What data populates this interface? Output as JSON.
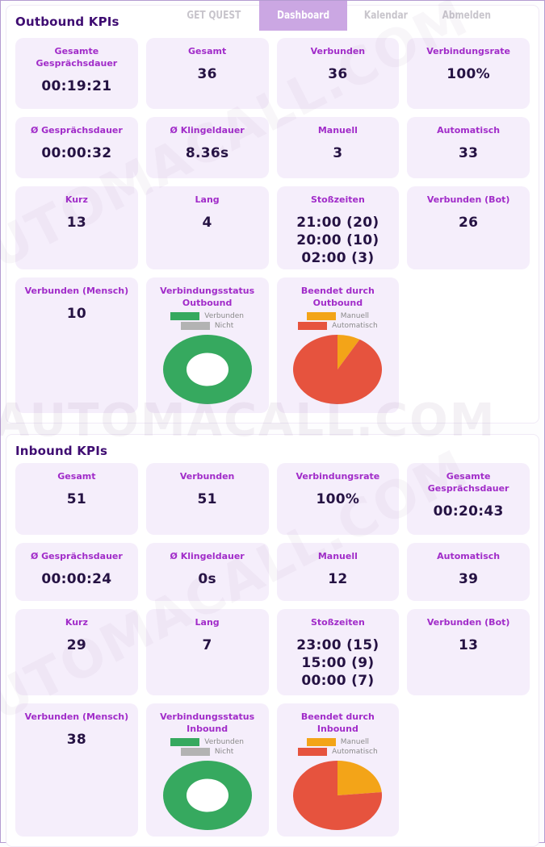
{
  "header": {
    "nav": [
      {
        "label": "GET QUEST",
        "active": false
      },
      {
        "label": "Dashboard",
        "active": true
      },
      {
        "label": "Kalendar",
        "active": false
      },
      {
        "label": "Abmelden",
        "active": false
      }
    ]
  },
  "watermark": "AUTOMACALL.COM",
  "colors": {
    "accent_purple": "#a12cc9",
    "dark_value": "#251243",
    "active_tab_bg": "#cba7e3",
    "card_bg": "#f5eefb",
    "green": "#36a95f",
    "red": "#e6533e",
    "orange": "#f3a418",
    "gray": "#b3b3b3"
  },
  "outbound": {
    "title": "Outbound KPIs",
    "cards": [
      {
        "label": "Gesamte Gesprächsdauer",
        "value": "00:19:21"
      },
      {
        "label": "Gesamt",
        "value": "36"
      },
      {
        "label": "Verbunden",
        "value": "36"
      },
      {
        "label": "Verbindungsrate",
        "value": "100%"
      },
      {
        "label": "Ø Gesprächsdauer",
        "value": "00:00:32"
      },
      {
        "label": "Ø Klingeldauer",
        "value": "8.36s"
      },
      {
        "label": "Manuell",
        "value": "3"
      },
      {
        "label": "Automatisch",
        "value": "33"
      },
      {
        "label": "Kurz",
        "value": "13"
      },
      {
        "label": "Lang",
        "value": "4"
      },
      {
        "label": "Stoßzeiten",
        "value": [
          "21:00 (20)",
          "20:00 (10)",
          "02:00 (3)"
        ]
      },
      {
        "label": "Verbunden (Bot)",
        "value": "26"
      },
      {
        "label": "Verbunden (Mensch)",
        "value": "10"
      },
      {
        "chart_id": "outbound-status"
      },
      {
        "chart_id": "outbound-ended"
      }
    ]
  },
  "inbound": {
    "title": "Inbound KPIs",
    "cards": [
      {
        "label": "Gesamt",
        "value": "51"
      },
      {
        "label": "Verbunden",
        "value": "51"
      },
      {
        "label": "Verbindungsrate",
        "value": "100%"
      },
      {
        "label": "Gesamte Gesprächsdauer",
        "value": "00:20:43"
      },
      {
        "label": "Ø Gesprächsdauer",
        "value": "00:00:24"
      },
      {
        "label": "Ø Klingeldauer",
        "value": "0s"
      },
      {
        "label": "Manuell",
        "value": "12"
      },
      {
        "label": "Automatisch",
        "value": "39"
      },
      {
        "label": "Kurz",
        "value": "29"
      },
      {
        "label": "Lang",
        "value": "7"
      },
      {
        "label": "Stoßzeiten",
        "value": [
          "23:00 (15)",
          "15:00 (9)",
          "00:00 (7)"
        ]
      },
      {
        "label": "Verbunden (Bot)",
        "value": "13"
      },
      {
        "label": "Verbunden (Mensch)",
        "value": "38"
      },
      {
        "chart_id": "inbound-status"
      },
      {
        "chart_id": "inbound-ended"
      }
    ]
  },
  "chart_data": [
    {
      "id": "outbound-status",
      "type": "pie",
      "donut": true,
      "title": "Verbindungsstatus Outbound",
      "labels": [
        "Verbunden",
        "Nicht"
      ],
      "values": [
        36,
        0
      ],
      "colors": [
        "#36a95f",
        "#b3b3b3"
      ],
      "legend_position": "top"
    },
    {
      "id": "outbound-ended",
      "type": "pie",
      "donut": false,
      "title": "Beendet durch Outbound",
      "labels": [
        "Manuell",
        "Automatisch"
      ],
      "values": [
        3,
        33
      ],
      "colors": [
        "#f3a418",
        "#e6533e"
      ],
      "legend_position": "top"
    },
    {
      "id": "inbound-status",
      "type": "pie",
      "donut": true,
      "title": "Verbindungsstatus Inbound",
      "labels": [
        "Verbunden",
        "Nicht"
      ],
      "values": [
        51,
        0
      ],
      "colors": [
        "#36a95f",
        "#b3b3b3"
      ],
      "legend_position": "top"
    },
    {
      "id": "inbound-ended",
      "type": "pie",
      "donut": false,
      "title": "Beendet durch Inbound",
      "labels": [
        "Manuell",
        "Automatisch"
      ],
      "values": [
        12,
        39
      ],
      "colors": [
        "#f3a418",
        "#e6533e"
      ],
      "legend_position": "top"
    }
  ]
}
